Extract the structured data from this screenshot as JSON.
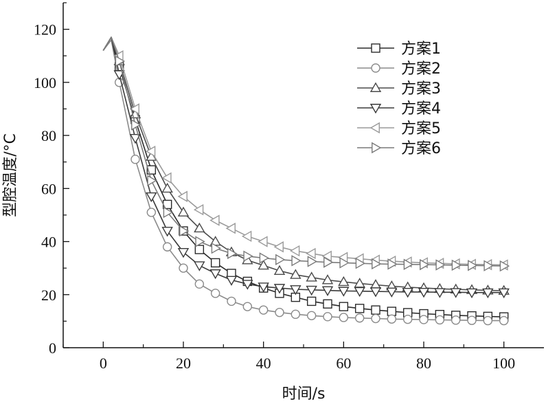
{
  "chart_data": {
    "type": "line",
    "xlabel": "时间/s",
    "ylabel": "型腔温度/°C",
    "xlim": [
      -10,
      110
    ],
    "ylim": [
      0,
      130
    ],
    "xticks": [
      0,
      20,
      40,
      60,
      80,
      100
    ],
    "yticks": [
      0,
      20,
      40,
      60,
      80,
      100,
      120
    ],
    "grid": false,
    "legend_position": "top-right",
    "series": [
      {
        "name": "方案1",
        "marker": "square",
        "color": "#2a2a2a",
        "x": [
          0,
          2,
          4,
          8,
          12,
          16,
          20,
          24,
          28,
          32,
          36,
          40,
          44,
          48,
          52,
          56,
          60,
          64,
          68,
          72,
          76,
          80,
          84,
          88,
          92,
          96,
          100
        ],
        "y": [
          112,
          117,
          106,
          86,
          67,
          54,
          44,
          37,
          32,
          28,
          25,
          22.5,
          20.5,
          19,
          17.5,
          16.5,
          15.5,
          14.8,
          14.2,
          13.7,
          13.2,
          12.8,
          12.5,
          12.2,
          12,
          11.8,
          11.6
        ]
      },
      {
        "name": "方案2",
        "marker": "circle",
        "color": "#8a8a8a",
        "x": [
          0,
          2,
          4,
          8,
          12,
          16,
          20,
          24,
          28,
          32,
          36,
          40,
          44,
          48,
          52,
          56,
          60,
          64,
          68,
          72,
          76,
          80,
          84,
          88,
          92,
          96,
          100
        ],
        "y": [
          112,
          116,
          100,
          71,
          51,
          38,
          30,
          24,
          20.5,
          17.5,
          15.5,
          14.2,
          13.3,
          12.6,
          12.1,
          11.7,
          11.4,
          11.2,
          11,
          10.8,
          10.7,
          10.6,
          10.5,
          10.4,
          10.3,
          10.2,
          10.2
        ]
      },
      {
        "name": "方案3",
        "marker": "triangle-up",
        "color": "#4a4a4a",
        "x": [
          0,
          2,
          4,
          8,
          12,
          16,
          20,
          24,
          28,
          32,
          36,
          40,
          44,
          48,
          52,
          56,
          60,
          64,
          68,
          72,
          76,
          80,
          84,
          88,
          92,
          96,
          100
        ],
        "y": [
          112,
          117,
          108,
          88,
          72,
          60,
          51,
          45,
          40,
          36,
          33,
          31,
          29,
          27.5,
          26.5,
          25.5,
          24.8,
          24.2,
          23.7,
          23.2,
          22.8,
          22.5,
          22.2,
          22,
          21.8,
          21.6,
          21.5
        ]
      },
      {
        "name": "方案4",
        "marker": "triangle-down",
        "color": "#3a3a3a",
        "x": [
          0,
          2,
          4,
          8,
          12,
          16,
          20,
          24,
          28,
          32,
          36,
          40,
          44,
          48,
          52,
          56,
          60,
          64,
          68,
          72,
          76,
          80,
          84,
          88,
          92,
          96,
          100
        ],
        "y": [
          112,
          117,
          103,
          79,
          57,
          44,
          36,
          31,
          28,
          25.5,
          24,
          23,
          22.5,
          22,
          21.8,
          21.6,
          21.4,
          21.3,
          21.2,
          21.1,
          21,
          21,
          20.9,
          20.9,
          20.8,
          20.8,
          20.8
        ]
      },
      {
        "name": "方案5",
        "marker": "triangle-left",
        "color": "#9a9a9a",
        "x": [
          0,
          2,
          4,
          8,
          12,
          16,
          20,
          24,
          28,
          32,
          36,
          40,
          44,
          48,
          52,
          56,
          60,
          64,
          68,
          72,
          76,
          80,
          84,
          88,
          92,
          96,
          100
        ],
        "y": [
          112,
          117,
          110,
          90,
          74,
          64,
          57,
          52,
          48,
          45,
          42,
          40,
          38,
          36.5,
          35.5,
          34.5,
          34,
          33.5,
          33,
          32.6,
          32.3,
          32,
          31.8,
          31.6,
          31.4,
          31.3,
          31.2
        ]
      },
      {
        "name": "方案6",
        "marker": "triangle-right",
        "color": "#7a7a7a",
        "x": [
          0,
          2,
          4,
          8,
          12,
          16,
          20,
          24,
          28,
          32,
          36,
          40,
          44,
          48,
          52,
          56,
          60,
          64,
          68,
          72,
          76,
          80,
          84,
          88,
          92,
          96,
          100
        ],
        "y": [
          112,
          117,
          108,
          84,
          63,
          51,
          44,
          40,
          37.5,
          35.5,
          34.5,
          33.8,
          33.2,
          32.8,
          32.5,
          32.2,
          32,
          31.8,
          31.6,
          31.5,
          31.4,
          31.3,
          31.2,
          31.1,
          31,
          30.9,
          30.8
        ]
      }
    ]
  }
}
